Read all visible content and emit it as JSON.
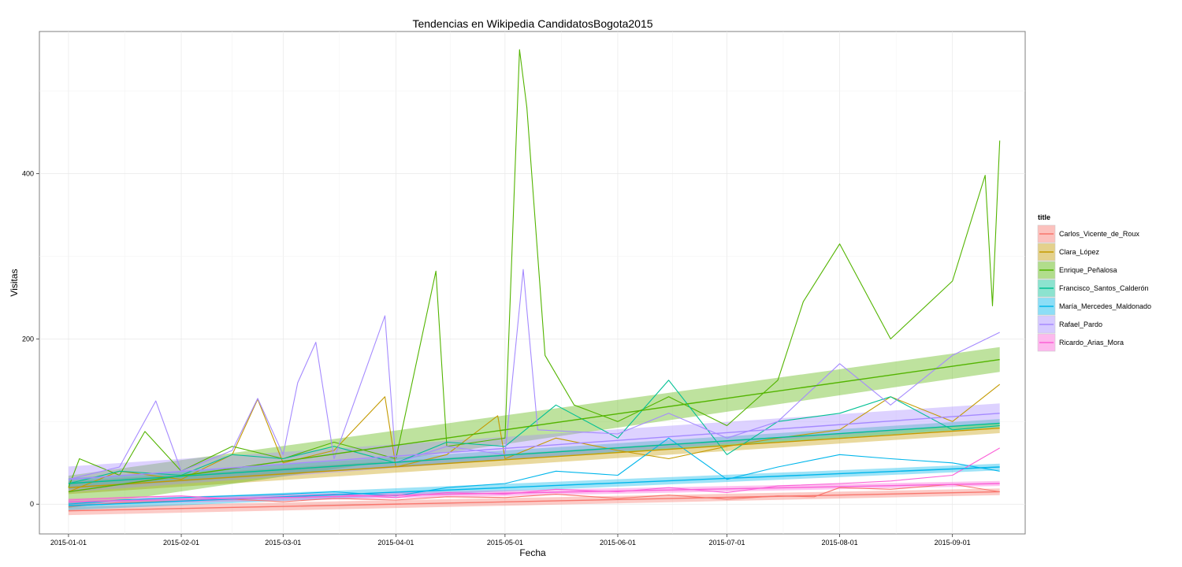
{
  "chart_data": {
    "type": "line",
    "title": "Tendencias en Wikipedia CandidatosBogota2015",
    "xlabel": "Fecha",
    "ylabel": "Visitas",
    "x_range": [
      "2014-12-24",
      "2015-09-21"
    ],
    "ylim": [
      -36,
      572
    ],
    "x_ticks": [
      "2015-01-01",
      "2015-02-01",
      "2015-03-01",
      "2015-04-01",
      "2015-05-01",
      "2015-06-01",
      "2015-07-01",
      "2015-08-01",
      "2015-09-01"
    ],
    "y_ticks": [
      0,
      200,
      400
    ],
    "grid": true,
    "legend": {
      "title": "title",
      "position": "right"
    },
    "smoothing": "linear regression with confidence band",
    "series": [
      {
        "name": "Carlos_Vicente_de_Roux",
        "color": "#F8766D",
        "trend": {
          "start": -8,
          "end": 15,
          "band": 4
        },
        "points": [
          [
            "2015-01-01",
            -3
          ],
          [
            "2015-01-15",
            2
          ],
          [
            "2015-02-01",
            4
          ],
          [
            "2015-02-15",
            6
          ],
          [
            "2015-03-01",
            3
          ],
          [
            "2015-03-15",
            7
          ],
          [
            "2015-04-01",
            5
          ],
          [
            "2015-04-15",
            9
          ],
          [
            "2015-05-01",
            8
          ],
          [
            "2015-05-15",
            12
          ],
          [
            "2015-06-01",
            7
          ],
          [
            "2015-06-15",
            11
          ],
          [
            "2015-07-01",
            6
          ],
          [
            "2015-07-15",
            10
          ],
          [
            "2015-07-25",
            9
          ],
          [
            "2015-08-01",
            20
          ],
          [
            "2015-08-15",
            18
          ],
          [
            "2015-09-01",
            24
          ],
          [
            "2015-09-14",
            15
          ]
        ]
      },
      {
        "name": "Clara_López",
        "color": "#C49A00",
        "trend": {
          "start": 20,
          "end": 92,
          "band": 6
        },
        "points": [
          [
            "2015-01-01",
            15
          ],
          [
            "2015-01-15",
            40
          ],
          [
            "2015-02-01",
            30
          ],
          [
            "2015-02-15",
            60
          ],
          [
            "2015-02-22",
            127
          ],
          [
            "2015-03-01",
            50
          ],
          [
            "2015-03-15",
            65
          ],
          [
            "2015-03-29",
            130
          ],
          [
            "2015-04-01",
            45
          ],
          [
            "2015-04-15",
            60
          ],
          [
            "2015-04-29",
            107
          ],
          [
            "2015-05-01",
            55
          ],
          [
            "2015-05-15",
            80
          ],
          [
            "2015-06-01",
            65
          ],
          [
            "2015-06-15",
            55
          ],
          [
            "2015-07-01",
            70
          ],
          [
            "2015-07-15",
            80
          ],
          [
            "2015-08-01",
            90
          ],
          [
            "2015-08-15",
            130
          ],
          [
            "2015-09-01",
            100
          ],
          [
            "2015-09-14",
            145
          ]
        ]
      },
      {
        "name": "Enrique_Peñalosa",
        "color": "#53B400",
        "trend": {
          "start": 15,
          "end": 175,
          "band": 15
        },
        "points": [
          [
            "2015-01-01",
            20
          ],
          [
            "2015-01-04",
            55
          ],
          [
            "2015-01-15",
            35
          ],
          [
            "2015-01-22",
            88
          ],
          [
            "2015-02-01",
            40
          ],
          [
            "2015-02-15",
            70
          ],
          [
            "2015-03-01",
            55
          ],
          [
            "2015-03-15",
            75
          ],
          [
            "2015-04-01",
            55
          ],
          [
            "2015-04-12",
            282
          ],
          [
            "2015-04-15",
            70
          ],
          [
            "2015-05-01",
            80
          ],
          [
            "2015-05-05",
            550
          ],
          [
            "2015-05-07",
            480
          ],
          [
            "2015-05-12",
            180
          ],
          [
            "2015-05-20",
            120
          ],
          [
            "2015-06-01",
            100
          ],
          [
            "2015-06-15",
            130
          ],
          [
            "2015-07-01",
            95
          ],
          [
            "2015-07-15",
            150
          ],
          [
            "2015-07-22",
            245
          ],
          [
            "2015-08-01",
            315
          ],
          [
            "2015-08-15",
            200
          ],
          [
            "2015-09-01",
            270
          ],
          [
            "2015-09-10",
            398
          ],
          [
            "2015-09-12",
            240
          ],
          [
            "2015-09-14",
            440
          ]
        ]
      },
      {
        "name": "Francisco_Santos_Calderón",
        "color": "#00C094",
        "trend": {
          "start": 25,
          "end": 98,
          "band": 5
        },
        "points": [
          [
            "2015-01-01",
            25
          ],
          [
            "2015-01-15",
            40
          ],
          [
            "2015-02-01",
            35
          ],
          [
            "2015-02-15",
            60
          ],
          [
            "2015-03-01",
            55
          ],
          [
            "2015-03-15",
            70
          ],
          [
            "2015-04-01",
            50
          ],
          [
            "2015-04-15",
            75
          ],
          [
            "2015-05-01",
            70
          ],
          [
            "2015-05-15",
            120
          ],
          [
            "2015-06-01",
            80
          ],
          [
            "2015-06-15",
            150
          ],
          [
            "2015-07-01",
            60
          ],
          [
            "2015-07-15",
            100
          ],
          [
            "2015-08-01",
            110
          ],
          [
            "2015-08-15",
            130
          ],
          [
            "2015-09-01",
            90
          ],
          [
            "2015-09-14",
            95
          ]
        ]
      },
      {
        "name": "María_Mercedes_Maldonado",
        "color": "#00B6EB",
        "trend": {
          "start": -2,
          "end": 45,
          "band": 4
        },
        "points": [
          [
            "2015-01-01",
            0
          ],
          [
            "2015-01-15",
            5
          ],
          [
            "2015-02-01",
            8
          ],
          [
            "2015-02-15",
            10
          ],
          [
            "2015-03-01",
            12
          ],
          [
            "2015-03-15",
            15
          ],
          [
            "2015-04-01",
            10
          ],
          [
            "2015-04-15",
            20
          ],
          [
            "2015-05-01",
            25
          ],
          [
            "2015-05-15",
            40
          ],
          [
            "2015-06-01",
            35
          ],
          [
            "2015-06-15",
            80
          ],
          [
            "2015-07-01",
            30
          ],
          [
            "2015-07-15",
            45
          ],
          [
            "2015-08-01",
            60
          ],
          [
            "2015-08-15",
            55
          ],
          [
            "2015-09-01",
            50
          ],
          [
            "2015-09-14",
            40
          ]
        ]
      },
      {
        "name": "Rafael_Pardo",
        "color": "#A58AFF",
        "trend": {
          "start": 30,
          "end": 110,
          "band": 12
        },
        "points": [
          [
            "2015-01-01",
            30
          ],
          [
            "2015-01-15",
            45
          ],
          [
            "2015-01-25",
            125
          ],
          [
            "2015-02-01",
            40
          ],
          [
            "2015-02-15",
            65
          ],
          [
            "2015-02-22",
            128
          ],
          [
            "2015-03-01",
            60
          ],
          [
            "2015-03-05",
            147
          ],
          [
            "2015-03-10",
            196
          ],
          [
            "2015-03-15",
            55
          ],
          [
            "2015-03-29",
            228
          ],
          [
            "2015-04-01",
            50
          ],
          [
            "2015-04-15",
            70
          ],
          [
            "2015-05-01",
            60
          ],
          [
            "2015-05-06",
            284
          ],
          [
            "2015-05-10",
            90
          ],
          [
            "2015-06-01",
            85
          ],
          [
            "2015-06-15",
            110
          ],
          [
            "2015-07-01",
            80
          ],
          [
            "2015-07-15",
            100
          ],
          [
            "2015-08-01",
            170
          ],
          [
            "2015-08-15",
            120
          ],
          [
            "2015-09-01",
            180
          ],
          [
            "2015-09-14",
            208
          ]
        ]
      },
      {
        "name": "Ricardo_Arias_Mora",
        "color": "#FB61D7",
        "trend": {
          "start": 3,
          "end": 25,
          "band": 3
        },
        "points": [
          [
            "2015-01-01",
            5
          ],
          [
            "2015-01-15",
            8
          ],
          [
            "2015-02-01",
            10
          ],
          [
            "2015-02-15",
            6
          ],
          [
            "2015-03-01",
            9
          ],
          [
            "2015-03-15",
            12
          ],
          [
            "2015-04-01",
            8
          ],
          [
            "2015-04-15",
            14
          ],
          [
            "2015-05-01",
            12
          ],
          [
            "2015-05-15",
            18
          ],
          [
            "2015-06-01",
            15
          ],
          [
            "2015-06-15",
            20
          ],
          [
            "2015-07-01",
            14
          ],
          [
            "2015-07-15",
            22
          ],
          [
            "2015-08-01",
            25
          ],
          [
            "2015-08-15",
            28
          ],
          [
            "2015-09-01",
            35
          ],
          [
            "2015-09-14",
            68
          ]
        ]
      }
    ]
  }
}
